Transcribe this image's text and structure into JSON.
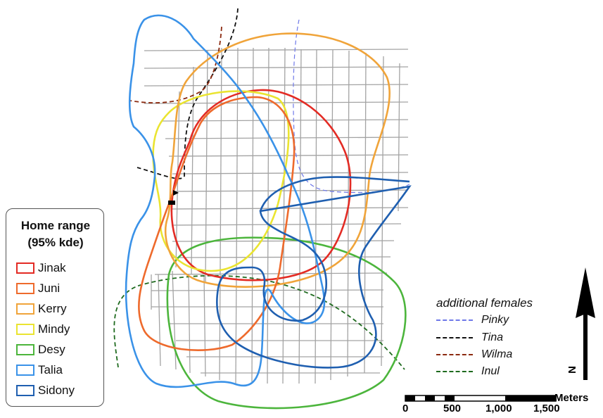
{
  "legend": {
    "title_line1": "Home range",
    "title_line2": "(95% kde)",
    "items": [
      {
        "label": "Jinak",
        "color": "#e32b24"
      },
      {
        "label": "Juni",
        "color": "#ee6a2c"
      },
      {
        "label": "Kerry",
        "color": "#f0a43a"
      },
      {
        "label": "Mindy",
        "color": "#eae431"
      },
      {
        "label": "Desy",
        "color": "#4cb53c"
      },
      {
        "label": "Talia",
        "color": "#3a92e8"
      },
      {
        "label": "Sidony",
        "color": "#1f5fb0"
      }
    ]
  },
  "additional_females": {
    "title": "additional females",
    "items": [
      {
        "label": "Pinky",
        "color": "#6e78e8"
      },
      {
        "label": "Tina",
        "color": "#111111"
      },
      {
        "label": "Wilma",
        "color": "#8b2a10"
      },
      {
        "label": "Inul",
        "color": "#1e6a1e"
      }
    ]
  },
  "north_arrow": {
    "label": "N"
  },
  "scale_bar": {
    "unit": "Meters",
    "ticks": [
      "0",
      "500",
      "1,000",
      "1,500"
    ]
  },
  "colors": {
    "grid": "#9a9a9a",
    "background": "#ffffff"
  }
}
